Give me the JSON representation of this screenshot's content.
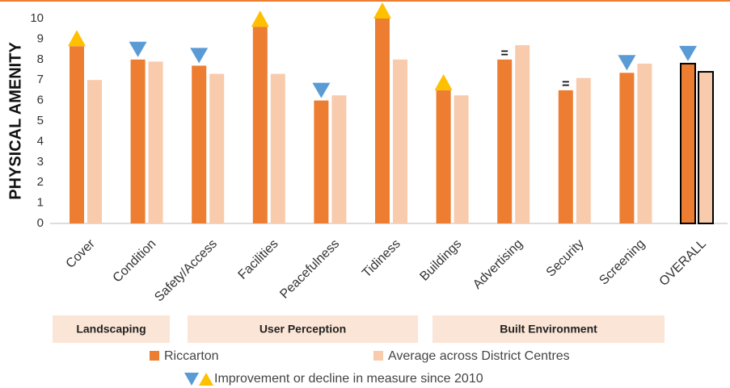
{
  "chart_data": {
    "type": "bar",
    "ylabel": "PHYSICAL AMENITY",
    "categories": [
      "Cover",
      "Condition",
      "Safety/Access",
      "Facilities",
      "Peacefulness",
      "Tidiness",
      "Buildings",
      "Advertising",
      "Security",
      "Screening",
      "OVERALL"
    ],
    "series": [
      {
        "name": "Riccarton",
        "color": "#ED7D31",
        "values": [
          8.65,
          8.0,
          7.7,
          9.6,
          6.0,
          10.0,
          6.5,
          8.0,
          6.5,
          7.35,
          7.8
        ]
      },
      {
        "name": "Average across District Centres",
        "color": "#F8CBAD",
        "values": [
          7.0,
          7.9,
          7.3,
          7.3,
          6.25,
          8.0,
          6.25,
          8.7,
          7.1,
          7.8,
          7.4
        ]
      }
    ],
    "change": [
      "up",
      "down",
      "down",
      "up",
      "down",
      "up",
      "up",
      "=",
      "=",
      "down",
      "down"
    ],
    "change_colors": {
      "up": "#FFC000",
      "down": "#5B9BD5"
    },
    "outlined": [
      false,
      false,
      false,
      false,
      false,
      false,
      false,
      false,
      false,
      false,
      true
    ],
    "outline_color": "#000000",
    "groups": [
      "Landscaping",
      "User Perception",
      "Built Environment"
    ],
    "group_color": "#FBE5D6",
    "change_legend": "Improvement or decline in measure since 2010",
    "ylim": [
      0,
      10
    ],
    "yticks": [
      0,
      1,
      2,
      3,
      4,
      5,
      6,
      7,
      8,
      9,
      10
    ],
    "grid": false
  }
}
